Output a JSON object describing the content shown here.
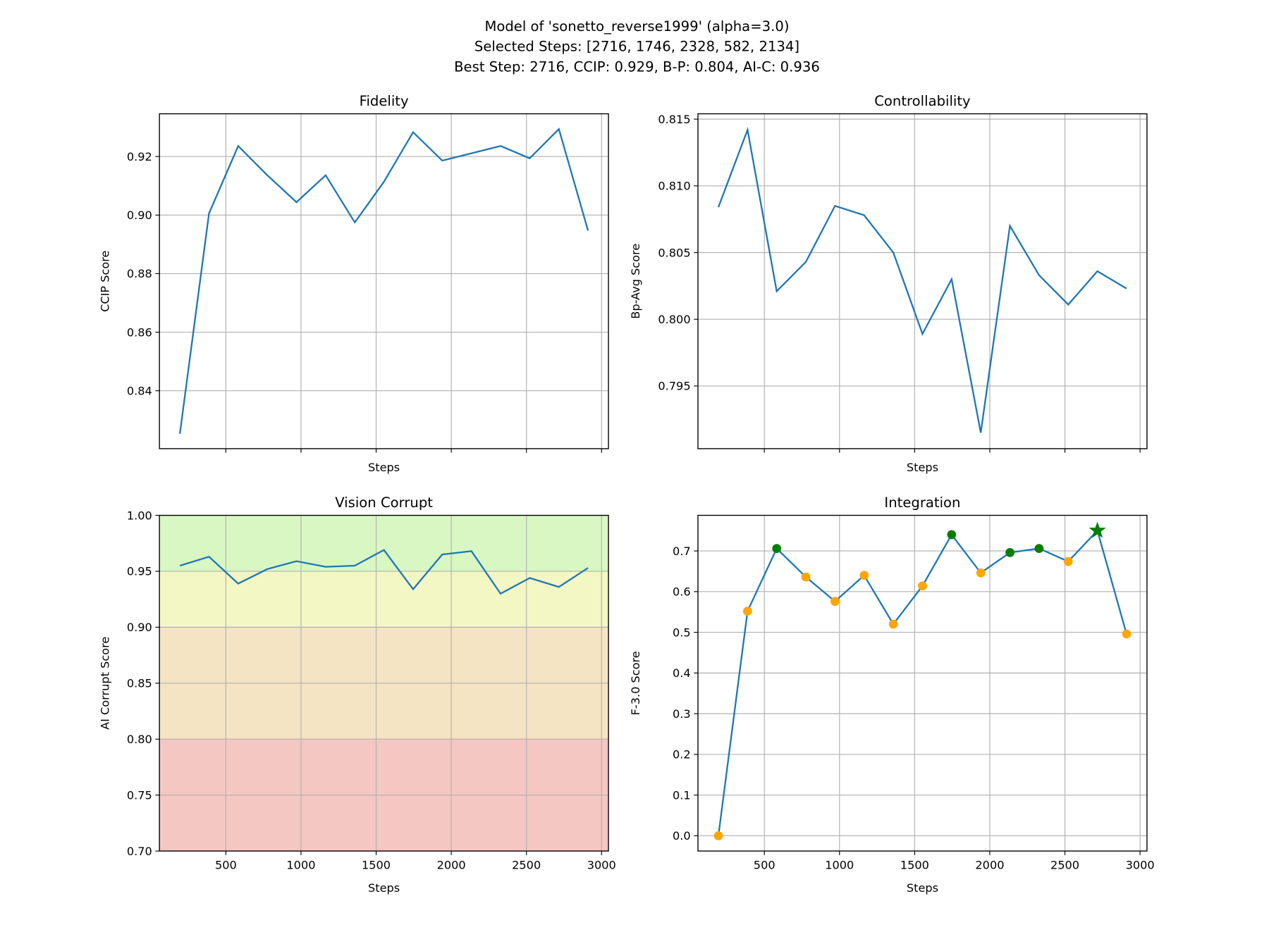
{
  "suptitle": [
    "Model of 'sonetto_reverse1999' (alpha=3.0)",
    "Selected Steps: [2716, 1746, 2328, 582, 2134]",
    "Best Step: 2716, CCIP: 0.929, B-P: 0.804, AI-C: 0.936"
  ],
  "colors": {
    "line": "#1f77b4",
    "grid": "#b0b0b0",
    "marker_default": "#ffa500",
    "marker_selected": "#008000",
    "marker_best": "#008000"
  },
  "chart_data": [
    {
      "type": "line",
      "title": "Fidelity",
      "xlabel": "Steps",
      "ylabel": "CCIP Score",
      "x": [
        194,
        388,
        582,
        776,
        970,
        1164,
        1358,
        1552,
        1746,
        1940,
        2134,
        2328,
        2522,
        2716,
        2910
      ],
      "y": [
        0.8253,
        0.9006,
        0.9236,
        0.9136,
        0.9044,
        0.9136,
        0.8975,
        0.9114,
        0.9283,
        0.9186,
        0.9211,
        0.9236,
        0.9194,
        0.9294,
        0.8947
      ],
      "xlim": [
        58,
        3046
      ],
      "ylim": [
        0.8202,
        0.9346
      ],
      "xticks": [
        500,
        1000,
        1500,
        2000,
        2500,
        3000
      ],
      "show_xticklabels": false,
      "yticks": [
        0.84,
        0.86,
        0.88,
        0.9,
        0.92
      ],
      "yticklabels": [
        "0.84",
        "0.86",
        "0.88",
        "0.90",
        "0.92"
      ],
      "grid": true
    },
    {
      "type": "line",
      "title": "Controllability",
      "xlabel": "Steps",
      "ylabel": "Bp-Avg Score",
      "x": [
        194,
        388,
        582,
        776,
        970,
        1164,
        1358,
        1552,
        1746,
        1940,
        2134,
        2328,
        2522,
        2716,
        2910
      ],
      "y": [
        0.8084,
        0.8142,
        0.8021,
        0.8043,
        0.8085,
        0.8078,
        0.805,
        0.7989,
        0.803,
        0.7915,
        0.807,
        0.8033,
        0.8011,
        0.8036,
        0.8023
      ],
      "xlim": [
        58,
        3046
      ],
      "ylim": [
        0.7903,
        0.8154
      ],
      "xticks": [
        500,
        1000,
        1500,
        2000,
        2500,
        3000
      ],
      "show_xticklabels": false,
      "yticks": [
        0.795,
        0.8,
        0.805,
        0.81,
        0.815
      ],
      "yticklabels": [
        "0.795",
        "0.800",
        "0.805",
        "0.810",
        "0.815"
      ],
      "grid": true
    },
    {
      "type": "line",
      "title": "Vision Corrupt",
      "xlabel": "Steps",
      "ylabel": "AI Corrupt Score",
      "x": [
        194,
        388,
        582,
        776,
        970,
        1164,
        1358,
        1552,
        1746,
        1940,
        2134,
        2328,
        2522,
        2716,
        2910
      ],
      "y": [
        0.955,
        0.963,
        0.939,
        0.952,
        0.959,
        0.954,
        0.955,
        0.969,
        0.934,
        0.965,
        0.968,
        0.93,
        0.944,
        0.936,
        0.953
      ],
      "xlim": [
        58,
        3046
      ],
      "ylim": [
        0.7,
        1.0
      ],
      "xticks": [
        500,
        1000,
        1500,
        2000,
        2500,
        3000
      ],
      "xticklabels": [
        "500",
        "1000",
        "1500",
        "2000",
        "2500",
        "3000"
      ],
      "show_xticklabels": true,
      "yticks": [
        0.7,
        0.75,
        0.8,
        0.85,
        0.9,
        0.95,
        1.0
      ],
      "yticklabels": [
        "0.70",
        "0.75",
        "0.80",
        "0.85",
        "0.90",
        "0.95",
        "1.00"
      ],
      "bands": [
        {
          "from": 0.95,
          "to": 1.0,
          "color": "#d9f7c3"
        },
        {
          "from": 0.9,
          "to": 0.95,
          "color": "#f3f7c3"
        },
        {
          "from": 0.8,
          "to": 0.9,
          "color": "#f5e4c4"
        },
        {
          "from": 0.7,
          "to": 0.8,
          "color": "#f5c7c2"
        }
      ],
      "grid": true
    },
    {
      "type": "line",
      "title": "Integration",
      "xlabel": "Steps",
      "ylabel": "F-3.0 Score",
      "x": [
        194,
        388,
        582,
        776,
        970,
        1164,
        1358,
        1552,
        1746,
        1940,
        2134,
        2328,
        2522,
        2716,
        2910
      ],
      "y": [
        0.0,
        0.552,
        0.706,
        0.636,
        0.576,
        0.64,
        0.52,
        0.614,
        0.74,
        0.646,
        0.696,
        0.706,
        0.674,
        0.75,
        0.496
      ],
      "selected_steps": [
        2716,
        1746,
        2328,
        582,
        2134
      ],
      "best_step": 2716,
      "xlim": [
        58,
        3046
      ],
      "ylim": [
        -0.0375,
        0.7875
      ],
      "xticks": [
        500,
        1000,
        1500,
        2000,
        2500,
        3000
      ],
      "xticklabels": [
        "500",
        "1000",
        "1500",
        "2000",
        "2500",
        "3000"
      ],
      "show_xticklabels": true,
      "yticks": [
        0.0,
        0.1,
        0.2,
        0.3,
        0.4,
        0.5,
        0.6,
        0.7
      ],
      "yticklabels": [
        "0.0",
        "0.1",
        "0.2",
        "0.3",
        "0.4",
        "0.5",
        "0.6",
        "0.7"
      ],
      "grid": true
    }
  ]
}
